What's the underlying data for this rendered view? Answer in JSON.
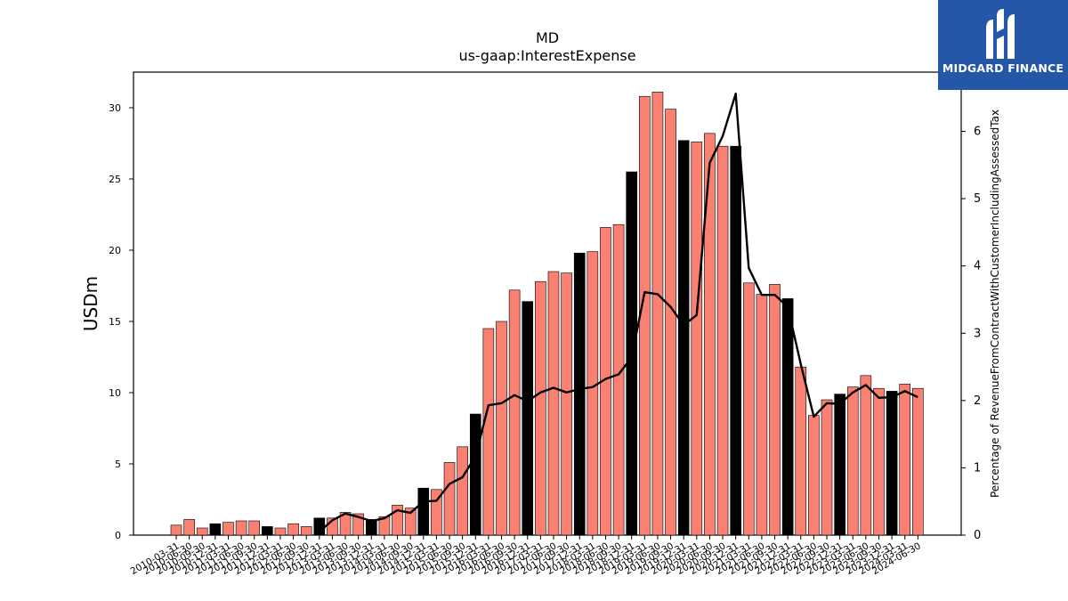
{
  "chart_data": {
    "type": "bar",
    "title": "MD",
    "subtitle": "us-gaap:InterestExpense",
    "ylabel": "USDm",
    "ylabel_right": "Percentage of RevenueFromContractWithCustomerIncludingAssessedTax",
    "ylim": [
      0,
      32.5
    ],
    "ylim_right": [
      0,
      6.88
    ],
    "yticks": [
      0,
      5,
      10,
      15,
      20,
      25,
      30
    ],
    "yticks_right": [
      0,
      1,
      2,
      3,
      4,
      5,
      6
    ],
    "grid": false,
    "colors": {
      "bar": "#fa8072",
      "bar_q4": "#000000",
      "line": "#000000",
      "edge": "#000000"
    },
    "categories": [
      "2010-03-31",
      "2010-06-30",
      "2010-09-30",
      "2010-12-31",
      "2011-03-31",
      "2011-06-30",
      "2011-09-30",
      "2011-12-31",
      "2012-03-31",
      "2012-06-30",
      "2012-09-30",
      "2012-12-31",
      "2013-03-31",
      "2013-06-30",
      "2013-09-30",
      "2013-12-31",
      "2014-03-31",
      "2014-06-30",
      "2014-09-30",
      "2014-12-31",
      "2015-03-31",
      "2015-06-30",
      "2015-09-30",
      "2015-12-31",
      "2016-03-31",
      "2016-06-30",
      "2016-09-30",
      "2016-12-31",
      "2017-03-31",
      "2017-06-30",
      "2017-09-30",
      "2017-12-31",
      "2018-03-31",
      "2018-06-30",
      "2018-09-30",
      "2018-12-31",
      "2019-03-31",
      "2019-06-30",
      "2019-09-30",
      "2019-12-31",
      "2020-03-31",
      "2020-06-30",
      "2020-09-30",
      "2020-12-31",
      "2021-03-31",
      "2021-06-30",
      "2021-09-30",
      "2021-12-31",
      "2022-03-31",
      "2022-06-30",
      "2022-09-30",
      "2022-12-31",
      "2023-03-31",
      "2023-06-30",
      "2023-09-30",
      "2023-12-31",
      "2024-03-31",
      "2024-06-30"
    ],
    "series": [
      {
        "type": "bar",
        "values": [
          0.7,
          1.1,
          0.5,
          0.8,
          0.9,
          1.0,
          1.0,
          0.6,
          0.5,
          0.8,
          0.6,
          1.2,
          1.2,
          1.6,
          1.5,
          1.1,
          1.3,
          2.1,
          1.9,
          3.3,
          3.2,
          5.1,
          6.2,
          8.5,
          14.5,
          15.0,
          17.2,
          16.4,
          17.8,
          18.5,
          18.4,
          19.8,
          19.9,
          21.6,
          21.8,
          25.5,
          30.8,
          31.1,
          29.9,
          27.7,
          27.6,
          28.2,
          27.3,
          27.3,
          17.7,
          16.9,
          17.6,
          16.6,
          11.8,
          8.4,
          9.5,
          9.9,
          10.4,
          11.2,
          10.3,
          10.1,
          10.6,
          10.3
        ]
      },
      {
        "type": "line",
        "axis": "right",
        "values": [
          null,
          null,
          null,
          null,
          null,
          null,
          null,
          null,
          null,
          null,
          null,
          0.05,
          0.22,
          0.32,
          0.27,
          0.21,
          0.25,
          0.37,
          0.33,
          0.5,
          0.51,
          0.76,
          0.86,
          1.17,
          1.93,
          1.96,
          2.08,
          1.99,
          2.12,
          2.19,
          2.12,
          2.17,
          2.2,
          2.32,
          2.39,
          2.64,
          3.61,
          3.58,
          3.39,
          3.12,
          3.27,
          5.53,
          5.93,
          6.56,
          3.97,
          3.57,
          3.57,
          3.39,
          2.54,
          1.76,
          1.96,
          1.95,
          2.12,
          2.23,
          2.04,
          2.05,
          2.14,
          2.05
        ]
      }
    ]
  },
  "logo": {
    "text": "MIDGARD FINANCE"
  }
}
